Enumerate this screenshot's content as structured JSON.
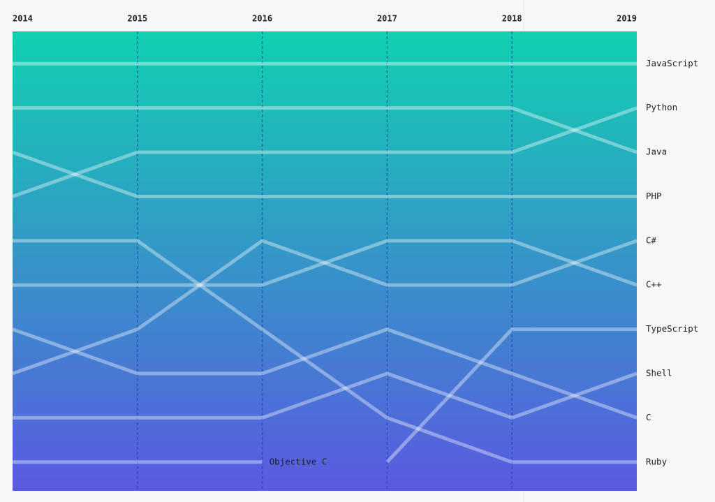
{
  "chart_data": {
    "type": "bump",
    "x": [
      2014,
      2015,
      2016,
      2017,
      2018,
      2019
    ],
    "xlim": [
      2014,
      2019
    ],
    "xticks": [
      2014,
      2015,
      2016,
      2017,
      2018,
      2019
    ],
    "ylim": [
      0.27,
      10.65
    ],
    "y_reversed": true,
    "background": [
      "#10d0b0",
      "#5a5ae0"
    ],
    "color": "#ffffff",
    "series": [
      {
        "name": "JavaScript",
        "values": [
          1,
          1,
          1,
          1,
          1,
          1
        ]
      },
      {
        "name": "Python",
        "values": [
          4,
          3,
          3,
          3,
          3,
          2
        ]
      },
      {
        "name": "Java",
        "values": [
          2,
          2,
          2,
          2,
          2,
          3
        ]
      },
      {
        "name": "PHP",
        "values": [
          3,
          4,
          4,
          4,
          4,
          4
        ]
      },
      {
        "name": "C#",
        "values": [
          8,
          7,
          5,
          6,
          6,
          5
        ]
      },
      {
        "name": "C++",
        "values": [
          6,
          6,
          6,
          5,
          5,
          6
        ]
      },
      {
        "name": "TypeScript",
        "values": [
          null,
          null,
          null,
          10,
          7,
          7
        ]
      },
      {
        "name": "Shell",
        "values": [
          9,
          9,
          9,
          8,
          9,
          8
        ]
      },
      {
        "name": "C",
        "values": [
          7,
          8,
          8,
          7,
          8,
          9
        ]
      },
      {
        "name": "Ruby",
        "values": [
          5,
          5,
          7,
          9,
          10,
          10
        ]
      },
      {
        "name": "Objective C",
        "values": [
          10,
          10,
          10,
          null,
          null,
          null
        ]
      }
    ]
  }
}
